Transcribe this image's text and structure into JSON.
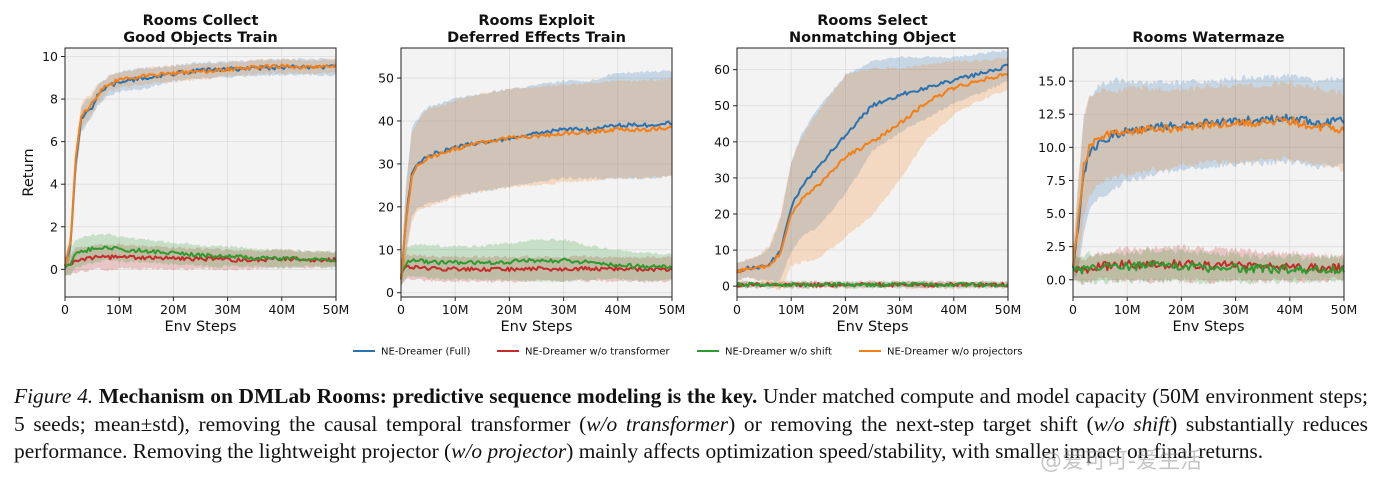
{
  "chart_data": [
    {
      "type": "line",
      "title": [
        "Rooms Collect",
        "Good Objects Train"
      ],
      "xlabel": "Env Steps",
      "ylabel": "Return",
      "xlim": [
        0,
        50
      ],
      "ylim": [
        -1.3,
        10.4
      ],
      "xticks": [
        0,
        10,
        20,
        30,
        40,
        50
      ],
      "xtick_labels": [
        "0",
        "10M",
        "20M",
        "30M",
        "40M",
        "50M"
      ],
      "yticks": [
        0,
        2,
        4,
        6,
        8,
        10
      ],
      "ytick_labels": [
        "0",
        "2",
        "4",
        "6",
        "8",
        "10"
      ],
      "grid": true,
      "x": [
        0,
        1,
        2,
        3,
        4,
        5,
        6,
        8,
        10,
        15,
        20,
        25,
        30,
        35,
        40,
        45,
        50
      ],
      "series": [
        {
          "name": "NE-Dreamer (Full)",
          "values": [
            0.2,
            1.0,
            5.0,
            7.0,
            7.4,
            7.6,
            8.2,
            8.6,
            8.8,
            9.0,
            9.2,
            9.35,
            9.4,
            9.45,
            9.5,
            9.5,
            9.5
          ],
          "std": [
            0.2,
            0.4,
            0.6,
            0.5,
            0.5,
            0.4,
            0.4,
            0.4,
            0.4,
            0.4,
            0.3,
            0.3,
            0.3,
            0.3,
            0.3,
            0.3,
            0.3
          ]
        },
        {
          "name": "NE-Dreamer w/o transformer",
          "values": [
            0.1,
            0.2,
            0.4,
            0.5,
            0.5,
            0.55,
            0.6,
            0.55,
            0.6,
            0.55,
            0.5,
            0.5,
            0.45,
            0.45,
            0.5,
            0.45,
            0.45
          ],
          "std": [
            0.3,
            0.4,
            0.5,
            0.5,
            0.5,
            0.5,
            0.5,
            0.5,
            0.5,
            0.45,
            0.45,
            0.4,
            0.4,
            0.35,
            0.35,
            0.3,
            0.3
          ]
        },
        {
          "name": "NE-Dreamer w/o shift",
          "values": [
            0.1,
            0.3,
            0.7,
            0.8,
            0.9,
            0.95,
            1.0,
            1.05,
            0.95,
            0.85,
            0.75,
            0.65,
            0.6,
            0.55,
            0.5,
            0.5,
            0.45
          ],
          "std": [
            0.3,
            0.5,
            0.6,
            0.6,
            0.6,
            0.6,
            0.55,
            0.55,
            0.5,
            0.45,
            0.45,
            0.4,
            0.4,
            0.35,
            0.35,
            0.3,
            0.3
          ]
        },
        {
          "name": "NE-Dreamer w/o projectors",
          "values": [
            0.2,
            1.2,
            5.2,
            7.2,
            7.5,
            7.8,
            8.2,
            8.7,
            8.9,
            9.1,
            9.2,
            9.3,
            9.4,
            9.5,
            9.55,
            9.5,
            9.55
          ],
          "std": [
            0.2,
            0.5,
            0.6,
            0.5,
            0.5,
            0.4,
            0.4,
            0.3,
            0.3,
            0.3,
            0.3,
            0.3,
            0.25,
            0.25,
            0.25,
            0.25,
            0.25
          ]
        }
      ]
    },
    {
      "type": "line",
      "title": [
        "Rooms Exploit",
        "Deferred Effects Train"
      ],
      "xlabel": "Env Steps",
      "ylabel": "",
      "xlim": [
        0,
        50
      ],
      "ylim": [
        -1.0,
        57.0
      ],
      "xticks": [
        0,
        10,
        20,
        30,
        40,
        50
      ],
      "xtick_labels": [
        "0",
        "10M",
        "20M",
        "30M",
        "40M",
        "50M"
      ],
      "yticks": [
        0,
        10,
        20,
        30,
        40,
        50
      ],
      "ytick_labels": [
        "0",
        "10",
        "20",
        "30",
        "40",
        "50"
      ],
      "grid": true,
      "x": [
        0,
        1,
        2,
        3,
        5,
        8,
        10,
        15,
        20,
        25,
        30,
        35,
        40,
        45,
        50
      ],
      "series": [
        {
          "name": "NE-Dreamer (Full)",
          "values": [
            3,
            18,
            28,
            30,
            32,
            33,
            34,
            35,
            36,
            37,
            38,
            38,
            39,
            39,
            39.5
          ],
          "std": [
            2,
            8,
            10,
            10,
            11,
            11,
            11,
            11,
            11,
            11,
            11,
            11,
            12,
            12,
            12
          ]
        },
        {
          "name": "NE-Dreamer w/o transformer",
          "values": [
            4,
            6,
            6,
            5.8,
            5.6,
            5.5,
            5.5,
            5.5,
            5.4,
            5.6,
            5.5,
            5.6,
            5.5,
            5.4,
            5.5
          ],
          "std": [
            2,
            2.5,
            2.5,
            2.5,
            2.5,
            2.5,
            2.5,
            2.5,
            2.5,
            2.5,
            2.5,
            2.5,
            2.5,
            2.5,
            2.5
          ]
        },
        {
          "name": "NE-Dreamer w/o shift",
          "values": [
            4,
            7,
            7.5,
            7.5,
            7.2,
            7,
            7,
            7,
            7.2,
            7.5,
            7.5,
            7,
            6.5,
            6,
            6
          ],
          "std": [
            2,
            3,
            3.5,
            3.5,
            3.5,
            3.5,
            3.5,
            3.5,
            4,
            4.5,
            4.5,
            3.5,
            3,
            3,
            2.5
          ]
        },
        {
          "name": "NE-Dreamer w/o projectors",
          "values": [
            3,
            17,
            27,
            29.5,
            31.5,
            32.5,
            33.5,
            35,
            36,
            36.5,
            37,
            37.5,
            38,
            38,
            38.5
          ],
          "std": [
            2,
            8,
            10,
            10,
            11,
            11,
            11,
            11,
            11,
            11,
            11,
            11,
            11,
            11,
            11
          ]
        }
      ]
    },
    {
      "type": "line",
      "title": [
        "Rooms Select",
        "Nonmatching Object"
      ],
      "xlabel": "Env Steps",
      "ylabel": "",
      "xlim": [
        0,
        50
      ],
      "ylim": [
        -3.0,
        66.0
      ],
      "xticks": [
        0,
        10,
        20,
        30,
        40,
        50
      ],
      "xtick_labels": [
        "0",
        "10M",
        "20M",
        "30M",
        "40M",
        "50M"
      ],
      "yticks": [
        0,
        10,
        20,
        30,
        40,
        50,
        60
      ],
      "ytick_labels": [
        "0",
        "10",
        "20",
        "30",
        "40",
        "50",
        "60"
      ],
      "grid": true,
      "x": [
        0,
        2,
        4,
        6,
        8,
        10,
        12,
        15,
        20,
        25,
        30,
        35,
        40,
        45,
        50
      ],
      "series": [
        {
          "name": "NE-Dreamer (Full)",
          "values": [
            4,
            5,
            5,
            6,
            10,
            22,
            28,
            33,
            42,
            50,
            53,
            55,
            57,
            59,
            61
          ],
          "std": [
            2,
            2,
            3,
            4,
            8,
            12,
            14,
            16,
            16,
            12,
            10,
            8,
            6,
            5,
            4
          ]
        },
        {
          "name": "NE-Dreamer w/o transformer",
          "values": [
            0.4,
            0.4,
            0.4,
            0.4,
            0.4,
            0.4,
            0.4,
            0.4,
            0.4,
            0.4,
            0.4,
            0.4,
            0.4,
            0.4,
            0.4
          ],
          "std": [
            0.4,
            0.4,
            0.4,
            0.4,
            0.4,
            0.4,
            0.4,
            0.4,
            0.4,
            0.4,
            0.4,
            0.4,
            0.4,
            0.4,
            0.4
          ]
        },
        {
          "name": "NE-Dreamer w/o shift",
          "values": [
            0.4,
            0.4,
            0.4,
            0.4,
            0.4,
            0.4,
            0.4,
            0.4,
            0.4,
            0.4,
            0.4,
            0.4,
            0.4,
            0.4,
            0.4
          ],
          "std": [
            0.4,
            0.4,
            0.4,
            0.4,
            0.4,
            0.4,
            0.4,
            0.4,
            0.4,
            0.4,
            0.4,
            0.4,
            0.4,
            0.4,
            0.4
          ]
        },
        {
          "name": "NE-Dreamer w/o projectors",
          "values": [
            4,
            5,
            5,
            6,
            9,
            20,
            24,
            28,
            36,
            40,
            45,
            51,
            55,
            57,
            59
          ],
          "std": [
            2,
            2,
            3,
            5,
            10,
            14,
            17,
            20,
            22,
            20,
            15,
            10,
            7,
            5,
            4
          ]
        }
      ]
    },
    {
      "type": "line",
      "title": [
        "Rooms Watermaze"
      ],
      "xlabel": "Env Steps",
      "ylabel": "",
      "xlim": [
        0,
        50
      ],
      "ylim": [
        -1.3,
        17.5
      ],
      "xticks": [
        0,
        10,
        20,
        30,
        40,
        50
      ],
      "xtick_labels": [
        "0",
        "10M",
        "20M",
        "30M",
        "40M",
        "50M"
      ],
      "yticks": [
        0,
        2.5,
        5,
        7.5,
        10,
        12.5,
        15
      ],
      "ytick_labels": [
        "0.0",
        "2.5",
        "5.0",
        "7.5",
        "10.0",
        "12.5",
        "15.0"
      ],
      "grid": true,
      "x": [
        0,
        1,
        2,
        3,
        5,
        8,
        10,
        15,
        20,
        25,
        30,
        35,
        40,
        45,
        50
      ],
      "series": [
        {
          "name": "NE-Dreamer (Full)",
          "values": [
            1,
            4,
            8,
            9.5,
            10.5,
            11,
            11.2,
            11.5,
            11.6,
            11.8,
            12,
            12,
            12.2,
            11.8,
            12
          ],
          "std": [
            1,
            3,
            4,
            4,
            4,
            3.8,
            3.5,
            3.2,
            3,
            3,
            3,
            3,
            3,
            3,
            3
          ]
        },
        {
          "name": "NE-Dreamer w/o transformer",
          "values": [
            1,
            0.7,
            0.6,
            0.7,
            1,
            1.1,
            1.2,
            1.1,
            1.2,
            1.1,
            1.1,
            1.0,
            1.0,
            0.9,
            0.9
          ],
          "std": [
            0.8,
            0.6,
            0.6,
            0.7,
            0.8,
            0.9,
            0.9,
            1,
            1,
            1,
            0.9,
            0.8,
            0.8,
            0.7,
            0.6
          ]
        },
        {
          "name": "NE-Dreamer w/o shift",
          "values": [
            1,
            0.8,
            0.8,
            0.9,
            0.9,
            1.0,
            1.0,
            1.1,
            1.0,
            0.9,
            0.9,
            0.8,
            0.8,
            0.8,
            0.8
          ],
          "std": [
            0.8,
            0.7,
            0.7,
            0.8,
            0.8,
            0.8,
            0.8,
            0.9,
            0.9,
            0.8,
            0.8,
            0.7,
            0.7,
            0.6,
            0.6
          ]
        },
        {
          "name": "NE-Dreamer w/o projectors",
          "values": [
            1,
            4.5,
            8.5,
            10,
            10.8,
            11,
            11.2,
            11.4,
            11.5,
            11.7,
            11.8,
            11.8,
            12,
            11.6,
            11.2
          ],
          "std": [
            1,
            3,
            3.5,
            3.5,
            3.2,
            3,
            3,
            2.8,
            2.6,
            2.6,
            2.6,
            2.6,
            2.6,
            2.6,
            2.6
          ]
        }
      ]
    }
  ],
  "legend": {
    "placement": "bottom-center",
    "colors": [
      "#2b73b0",
      "#c62b2b",
      "#2f9a2f",
      "#f47f17"
    ],
    "labels": [
      "NE-Dreamer (Full)",
      "NE-Dreamer w/o transformer",
      "NE-Dreamer w/o shift",
      "NE-Dreamer w/o projectors"
    ]
  },
  "caption": {
    "label": "Figure 4.",
    "title": "Mechanism on DMLab Rooms: predictive sequence modeling is the key.",
    "t1": "Under matched compute and model capacity (50M environment steps; 5 seeds; mean±std), removing the causal temporal transformer (",
    "i1": "w/o transformer",
    "t2": ") or removing the next-step target shift (",
    "i2": "w/o shift",
    "t3": ") substantially reduces performance. Removing the lightweight projector (",
    "i3": "w/o projector",
    "t4": ") mainly affects optimization speed/stability, with smaller impact on final returns."
  },
  "watermark": "@爱可可-爱生活"
}
